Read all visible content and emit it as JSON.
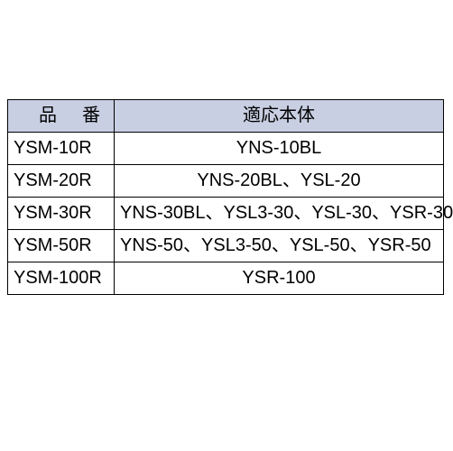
{
  "table": {
    "header_bg": "#c9cfe3",
    "columns": [
      {
        "label": "品番",
        "class": "part"
      },
      {
        "label": "適応本体",
        "class": ""
      }
    ],
    "rows": [
      {
        "part": "YSM-10R",
        "body": "YNS-10BL",
        "align": "center"
      },
      {
        "part": "YSM-20R",
        "body": "YNS-20BL、YSL-20",
        "align": "center"
      },
      {
        "part": "YSM-30R",
        "body": "YNS-30BL、YSL3-30、YSL-30、YSR-30",
        "align": "left"
      },
      {
        "part": "YSM-50R",
        "body": "YNS-50、YSL3-50、YSL-50、YSR-50",
        "align": "left"
      },
      {
        "part": "YSM-100R",
        "body": "YSR-100",
        "align": "center"
      }
    ]
  }
}
